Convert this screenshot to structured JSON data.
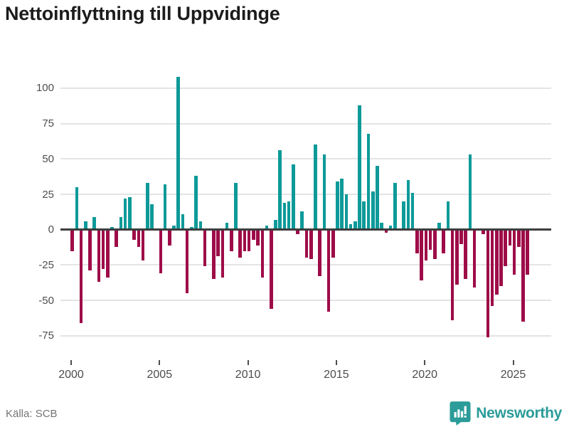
{
  "header": {
    "title": "Nettoinflyttning till Uppvidinge"
  },
  "footer": {
    "source_label": "Källa: SCB",
    "brand_name": "Newsworthy"
  },
  "icons": {
    "brand_icon": "newsworthy-bubble-barchart-icon"
  },
  "colors": {
    "positive_bar": "#0d9a99",
    "negative_bar": "#9e0c48",
    "gridline": "#e4e4e4",
    "zero_axis": "#3d3d3d",
    "tick_text": "#4d4d4d",
    "title_text": "#1c1c1c",
    "source_text": "#757575",
    "brand_teal": "#2b9c99"
  },
  "chart_data": {
    "type": "bar",
    "title": "Nettoinflyttning till Uppvidinge",
    "xlabel": "",
    "ylabel": "",
    "frequency": "quarterly",
    "start_period": "2000 Q1",
    "end_period": "2025 Q4",
    "values": [
      -15,
      30,
      -66,
      6,
      -29,
      9,
      -37,
      -28,
      -34,
      2,
      -12,
      9,
      22,
      23,
      -7,
      -12,
      -22,
      33,
      18,
      0,
      -31,
      32,
      -11,
      3,
      108,
      11,
      -45,
      2,
      38,
      6,
      -26,
      0,
      -35,
      -19,
      -34,
      5,
      -15,
      33,
      -20,
      -15,
      -15,
      -7,
      -11,
      -34,
      3,
      -56,
      7,
      56,
      19,
      20,
      46,
      -3,
      13,
      -20,
      -21,
      60,
      -33,
      53,
      -58,
      -20,
      34,
      36,
      25,
      4,
      6,
      88,
      20,
      68,
      27,
      45,
      5,
      -2,
      3,
      33,
      0,
      20,
      35,
      26,
      -17,
      -36,
      -22,
      -14,
      -21,
      5,
      -17,
      20,
      -64,
      -39,
      -10,
      -35,
      53,
      -41,
      0,
      -3,
      -76,
      -54,
      -46,
      -40,
      -26,
      -11,
      -32,
      -12,
      -65,
      -32
    ],
    "yticks": [
      100,
      75,
      50,
      25,
      0,
      -25,
      -50,
      -75
    ],
    "ylim": [
      -85,
      115
    ],
    "xticks_years": [
      2000,
      2005,
      2010,
      2015,
      2020,
      2025
    ],
    "grid": true,
    "legend_position": "none",
    "bar_color_positive": "#0d9a99",
    "bar_color_negative": "#9e0c48",
    "source": "Källa: SCB"
  }
}
